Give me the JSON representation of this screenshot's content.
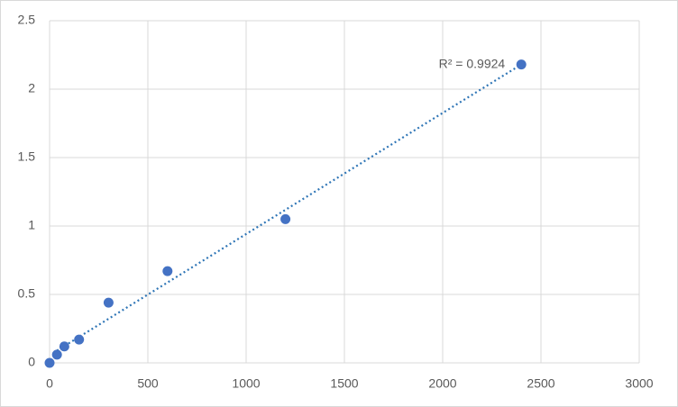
{
  "chart_data": {
    "type": "scatter",
    "series": [
      {
        "color": "#4472c4",
        "x": [
          0,
          37.5,
          75,
          150,
          300,
          600,
          1200,
          2400
        ],
        "values": [
          0,
          0.06,
          0.12,
          0.17,
          0.44,
          0.67,
          1.05,
          2.18
        ]
      }
    ],
    "trendline": {
      "x": [
        37.5,
        2400
      ],
      "y": [
        0.09,
        2.18
      ],
      "color": "#2e75b6",
      "label": "R² = 0.9924"
    },
    "xlim": [
      0,
      3000
    ],
    "xticks": [
      0,
      500,
      1000,
      1500,
      2000,
      2500,
      3000
    ],
    "ylim": [
      0,
      2.5
    ],
    "yticks": [
      0,
      0.5,
      1,
      1.5,
      2,
      2.5
    ],
    "grid": true
  }
}
